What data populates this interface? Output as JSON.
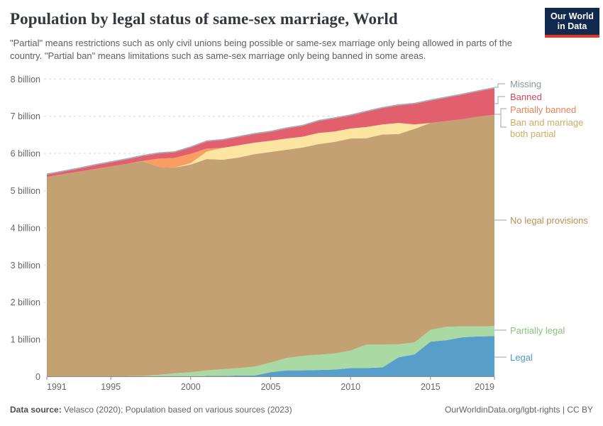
{
  "header": {
    "title": "Population by legal status of same-sex marriage, World",
    "subtitle": "\"Partial\" means restrictions such as only civil unions being possible or same-sex marriage only being allowed in parts of the country. \"Partial ban\" means limitations such as same-sex marriage only being banned in some areas.",
    "logo": {
      "line1": "Our World",
      "line2": "in Data"
    }
  },
  "footer": {
    "source_label": "Data source:",
    "source_text": " Velasco (2020); Population based on various sources (2023)",
    "right_text": "OurWorldinData.org/lgbt-rights | CC BY"
  },
  "chart_data": {
    "type": "area",
    "stacked": true,
    "title": "Population by legal status of same-sex marriage, World",
    "xlabel": "",
    "ylabel": "",
    "ylim": [
      0,
      8
    ],
    "y_unit": "billion people",
    "grid": "horizontal-dashed",
    "legend_position": "right",
    "x": [
      1991,
      1992,
      1993,
      1994,
      1995,
      1996,
      1997,
      1998,
      1999,
      2000,
      2001,
      2002,
      2003,
      2004,
      2005,
      2006,
      2007,
      2008,
      2009,
      2010,
      2011,
      2012,
      2013,
      2014,
      2015,
      2016,
      2017,
      2018,
      2019
    ],
    "xticks": [
      1991,
      1995,
      2000,
      2005,
      2010,
      2015,
      2019
    ],
    "yticks": [
      {
        "value": 0,
        "label": "0"
      },
      {
        "value": 1,
        "label": "1 billion"
      },
      {
        "value": 2,
        "label": "2 billion"
      },
      {
        "value": 3,
        "label": "3 billion"
      },
      {
        "value": 4,
        "label": "4 billion"
      },
      {
        "value": 5,
        "label": "5 billion"
      },
      {
        "value": 6,
        "label": "6 billion"
      },
      {
        "value": 7,
        "label": "7 billion"
      },
      {
        "value": 8,
        "label": "8 billion"
      }
    ],
    "series": [
      {
        "name": "legal",
        "label": "Legal",
        "color": "#589ecb",
        "label_color": "#4d97c9",
        "values": [
          0,
          0,
          0,
          0,
          0,
          0,
          0,
          0,
          0,
          0,
          0.02,
          0.02,
          0.03,
          0.03,
          0.12,
          0.17,
          0.17,
          0.18,
          0.19,
          0.23,
          0.23,
          0.25,
          0.52,
          0.6,
          0.94,
          0.98,
          1.06,
          1.08,
          1.09
        ]
      },
      {
        "name": "partially-legal",
        "label": "Partially legal",
        "color": "#a9daa3",
        "label_color": "#86c47d",
        "values": [
          0,
          0,
          0,
          0,
          0,
          0.01,
          0.02,
          0.05,
          0.09,
          0.12,
          0.15,
          0.18,
          0.2,
          0.24,
          0.26,
          0.33,
          0.39,
          0.41,
          0.43,
          0.47,
          0.63,
          0.61,
          0.35,
          0.32,
          0.32,
          0.36,
          0.29,
          0.27,
          0.27
        ]
      },
      {
        "name": "no-legal-provisions",
        "label": "No legal provisions",
        "color": "#c4a173",
        "label_color": "#be8e52",
        "values": [
          5.37,
          5.44,
          5.51,
          5.58,
          5.65,
          5.71,
          5.77,
          5.59,
          5.53,
          5.58,
          5.68,
          5.63,
          5.66,
          5.71,
          5.66,
          5.6,
          5.6,
          5.66,
          5.69,
          5.7,
          5.55,
          5.65,
          5.65,
          5.74,
          5.56,
          5.53,
          5.57,
          5.64,
          5.68
        ]
      },
      {
        "name": "ban-and-marriage-both-partial",
        "label": "Ban and marriage both partial",
        "color": "#fce4a1",
        "label_color": "#ceac62",
        "values": [
          0,
          0,
          0,
          0,
          0,
          0,
          0,
          0,
          0,
          0.04,
          0.2,
          0.32,
          0.33,
          0.31,
          0.3,
          0.3,
          0.29,
          0.3,
          0.28,
          0.27,
          0.3,
          0.27,
          0.3,
          0.12,
          0,
          0,
          0,
          0,
          0
        ]
      },
      {
        "name": "partially-banned",
        "label": "Partially banned",
        "color": "#fa9d63",
        "label_color": "#e8835c",
        "values": [
          0,
          0,
          0,
          0,
          0,
          0,
          0.01,
          0.22,
          0.26,
          0.25,
          0.08,
          0,
          0,
          0,
          0,
          0,
          0,
          0,
          0,
          0,
          0,
          0,
          0,
          0,
          0,
          0,
          0,
          0,
          0
        ]
      },
      {
        "name": "banned",
        "label": "Banned",
        "color": "#e25f6d",
        "label_color": "#d1495c",
        "values": [
          0.06,
          0.07,
          0.08,
          0.1,
          0.11,
          0.12,
          0.13,
          0.14,
          0.15,
          0.17,
          0.19,
          0.21,
          0.22,
          0.23,
          0.24,
          0.27,
          0.29,
          0.32,
          0.35,
          0.35,
          0.41,
          0.44,
          0.47,
          0.55,
          0.6,
          0.63,
          0.66,
          0.68,
          0.71
        ]
      },
      {
        "name": "missing",
        "label": "Missing",
        "color": "#a3abb4",
        "label_color": "#8c96a1",
        "values": [
          0.03,
          0.03,
          0.03,
          0.03,
          0.03,
          0.03,
          0.03,
          0.03,
          0.03,
          0.03,
          0.03,
          0.03,
          0.03,
          0.03,
          0.03,
          0.03,
          0.03,
          0.03,
          0.03,
          0.03,
          0.03,
          0.03,
          0.03,
          0.03,
          0.03,
          0.03,
          0.03,
          0.03,
          0.03
        ]
      }
    ]
  }
}
